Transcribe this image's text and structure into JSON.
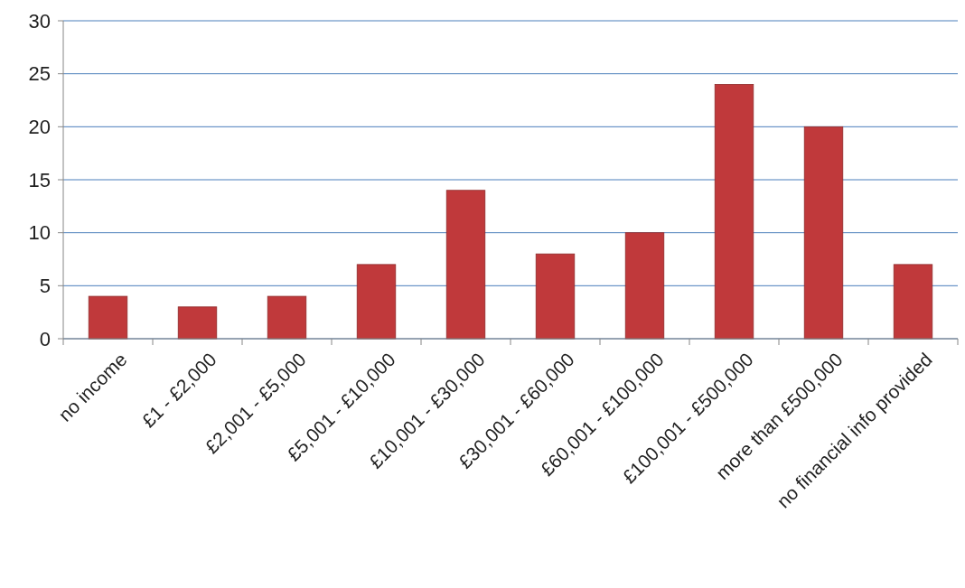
{
  "chart_data": {
    "type": "bar",
    "categories": [
      "no income",
      "£1 - £2,000",
      "£2,001 - £5,000",
      "£5,001 - £10,000",
      "£10,001 - £30,000",
      "£30,001 - £60,000",
      "£60,001 - £100,000",
      "£100,001 - £500,000",
      "more than £500,000",
      "no financial info provided"
    ],
    "values": [
      4,
      3,
      4,
      7,
      14,
      8,
      10,
      24,
      20,
      7
    ],
    "color": "#c0393b",
    "ylim": [
      0,
      30
    ],
    "yticks": [
      0,
      5,
      10,
      15,
      20,
      25,
      30
    ],
    "grid": "y"
  }
}
